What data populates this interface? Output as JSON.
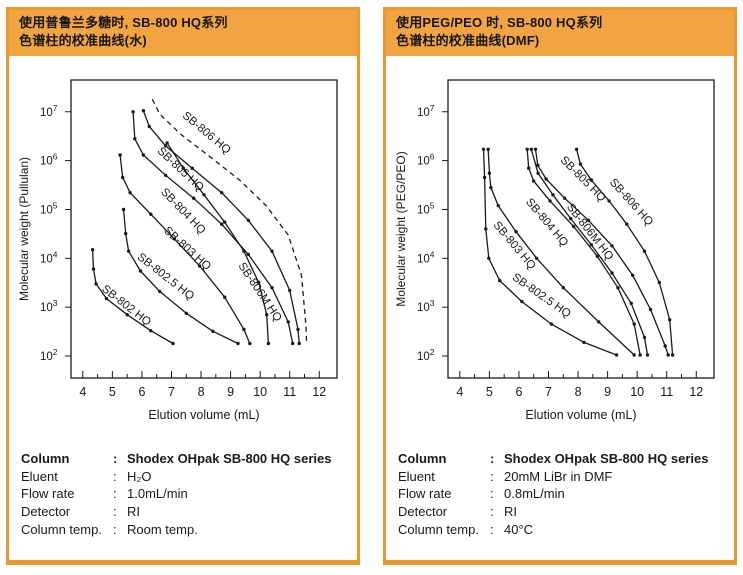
{
  "accent": {
    "panel_orange": "#F2A441",
    "panel_border": "#E9982F",
    "curve_ink": "#1a1a1a"
  },
  "separator": ":",
  "panels": [
    {
      "title_line1": "使用普鲁兰多糖时, SB-800 HQ系列",
      "title_line2": "色谱柱的校准曲线(水)",
      "info": [
        {
          "label": "Column",
          "value": "Shodex OHpak SB-800 HQ series"
        },
        {
          "label": "Eluent",
          "value": "H₂O"
        },
        {
          "label": "Flow rate",
          "value": "1.0mL/min"
        },
        {
          "label": "Detector",
          "value": "RI"
        },
        {
          "label": "Column temp.",
          "value": "Room temp."
        }
      ]
    },
    {
      "title_line1": "使用PEG/PEO 时, SB-800 HQ系列",
      "title_line2": "色谱柱的校准曲线(DMF)",
      "info": [
        {
          "label": "Column",
          "value": "Shodex OHpak SB-800 HQ series"
        },
        {
          "label": "Eluent",
          "value": "20mM LiBr in DMF"
        },
        {
          "label": "Flow rate",
          "value": "0.8mL/min"
        },
        {
          "label": "Detector",
          "value": "RI"
        },
        {
          "label": "Column temp.",
          "value": "40°C"
        }
      ]
    }
  ],
  "chart_data": [
    {
      "type": "line",
      "title": "使用普鲁兰多糖时, SB-800 HQ系列色谱柱的校准曲线(水)",
      "xlabel": "Elution volume (mL)",
      "ylabel": "Molecular weight (Pullulan)",
      "y_scale": "log",
      "grid": false,
      "legend": "labels along curves",
      "x_ticks": [
        4,
        5,
        6,
        7,
        8,
        9,
        10,
        11,
        12
      ],
      "x_minor_ticks": [
        4.5,
        5.5,
        6.5,
        7.5,
        8.5,
        9.5,
        10.5,
        11.5
      ],
      "y_tick_exponents": [
        2,
        3,
        4,
        5,
        6,
        7
      ],
      "xlim": [
        3.6,
        12.6
      ],
      "ylim_exponents": [
        1.55,
        7.65
      ],
      "series": [
        {
          "name": "SB-802 HQ",
          "style": "solid",
          "markers": true,
          "label_anchor": {
            "x": 4.62,
            "y_exp": 3.35,
            "rotation": 38
          },
          "points": [
            [
              4.33,
              15000
            ],
            [
              4.36,
              6000
            ],
            [
              4.45,
              3000
            ],
            [
              4.8,
              1500
            ],
            [
              5.5,
              700
            ],
            [
              6.3,
              330
            ],
            [
              7.05,
              180
            ]
          ]
        },
        {
          "name": "SB-802.5 HQ",
          "style": "solid",
          "markers": true,
          "label_anchor": {
            "x": 5.82,
            "y_exp": 4.0,
            "rotation": 38
          },
          "points": [
            [
              5.38,
              100000
            ],
            [
              5.45,
              32000
            ],
            [
              5.55,
              14000
            ],
            [
              5.95,
              5500
            ],
            [
              6.6,
              2100
            ],
            [
              7.5,
              750
            ],
            [
              8.4,
              320
            ],
            [
              9.25,
              180
            ]
          ]
        },
        {
          "name": "SB-803 HQ",
          "style": "solid",
          "markers": true,
          "label_anchor": {
            "x": 6.72,
            "y_exp": 4.55,
            "rotation": 42
          },
          "points": [
            [
              5.26,
              1300000
            ],
            [
              5.35,
              450000
            ],
            [
              5.6,
              220000
            ],
            [
              6.3,
              80000
            ],
            [
              7.1,
              25000
            ],
            [
              7.95,
              7000
            ],
            [
              8.8,
              1600
            ],
            [
              9.45,
              350
            ],
            [
              9.65,
              180
            ]
          ]
        },
        {
          "name": "SB-804 HQ",
          "style": "solid",
          "markers": true,
          "label_anchor": {
            "x": 6.62,
            "y_exp": 5.35,
            "rotation": 46
          },
          "points": [
            [
              5.7,
              10000000
            ],
            [
              5.76,
              2800000
            ],
            [
              6.05,
              1300000
            ],
            [
              6.8,
              500000
            ],
            [
              7.75,
              170000
            ],
            [
              8.7,
              50000
            ],
            [
              9.6,
              12000
            ],
            [
              10.4,
              2500
            ],
            [
              10.95,
              500
            ],
            [
              11.1,
              180
            ]
          ]
        },
        {
          "name": "SB-805 HQ",
          "style": "solid",
          "markers": true,
          "label_anchor": {
            "x": 6.5,
            "y_exp": 6.18,
            "rotation": 43
          },
          "points": [
            [
              6.05,
              10500000
            ],
            [
              6.25,
              5000000
            ],
            [
              6.8,
              2000000
            ],
            [
              7.7,
              700000
            ],
            [
              8.7,
              220000
            ],
            [
              9.6,
              60000
            ],
            [
              10.4,
              14000
            ],
            [
              11.0,
              2200
            ],
            [
              11.28,
              350
            ],
            [
              11.32,
              180
            ]
          ]
        },
        {
          "name": "SB-806 HQ",
          "style": "dashed",
          "markers": false,
          "label_anchor": {
            "x": 7.35,
            "y_exp": 6.9,
            "rotation": 40
          },
          "points": [
            [
              6.35,
              18000000
            ],
            [
              6.6,
              9000000
            ],
            [
              7.3,
              3500000
            ],
            [
              8.3,
              1200000
            ],
            [
              9.3,
              400000
            ],
            [
              10.2,
              120000
            ],
            [
              10.95,
              30000
            ],
            [
              11.4,
              4500
            ],
            [
              11.55,
              400
            ],
            [
              11.57,
              180
            ]
          ]
        },
        {
          "name": "SB-806M HQ",
          "style": "solid",
          "markers": true,
          "label_anchor": {
            "x": 9.25,
            "y_exp": 3.85,
            "rotation": 56
          },
          "points": [
            [
              6.85,
              2300000
            ],
            [
              7.4,
              700000
            ],
            [
              8.1,
              200000
            ],
            [
              8.8,
              55000
            ],
            [
              9.45,
              14000
            ],
            [
              9.95,
              3200
            ],
            [
              10.22,
              700
            ],
            [
              10.28,
              180
            ]
          ]
        }
      ]
    },
    {
      "type": "line",
      "title": "使用PEG/PEO 时, SB-800 HQ系列色谱柱的校准曲线(DMF)",
      "xlabel": "Elution volume (mL)",
      "ylabel": "Molecular weight (PEG/PEO)",
      "y_scale": "log",
      "grid": false,
      "legend": "labels along curves",
      "x_ticks": [
        4,
        5,
        6,
        7,
        8,
        9,
        10,
        11,
        12
      ],
      "x_minor_ticks": [
        4.5,
        5.5,
        6.5,
        7.5,
        8.5,
        9.5,
        10.5,
        11.5
      ],
      "y_tick_exponents": [
        2,
        3,
        4,
        5,
        6,
        7
      ],
      "xlim": [
        3.6,
        12.6
      ],
      "ylim_exponents": [
        1.55,
        7.65
      ],
      "series": [
        {
          "name": "SB-802.5 HQ",
          "style": "solid",
          "markers": true,
          "label_anchor": {
            "x": 5.75,
            "y_exp": 3.58,
            "rotation": 35
          },
          "points": [
            [
              4.8,
              1700000
            ],
            [
              4.84,
              450000
            ],
            [
              4.88,
              40000
            ],
            [
              4.98,
              10000
            ],
            [
              5.35,
              3500
            ],
            [
              6.1,
              1300
            ],
            [
              7.1,
              450
            ],
            [
              8.2,
              190
            ],
            [
              9.3,
              105
            ]
          ]
        },
        {
          "name": "SB-803 HQ",
          "style": "solid",
          "markers": true,
          "label_anchor": {
            "x": 5.12,
            "y_exp": 4.68,
            "rotation": 50
          },
          "points": [
            [
              4.96,
              1700000
            ],
            [
              5.0,
              550000
            ],
            [
              5.05,
              280000
            ],
            [
              5.3,
              120000
            ],
            [
              5.9,
              35000
            ],
            [
              6.6,
              10000
            ],
            [
              7.5,
              2500
            ],
            [
              8.7,
              500
            ],
            [
              9.9,
              105
            ]
          ]
        },
        {
          "name": "SB-804 HQ",
          "style": "solid",
          "markers": true,
          "label_anchor": {
            "x": 6.22,
            "y_exp": 5.15,
            "rotation": 50
          },
          "points": [
            [
              6.28,
              1700000
            ],
            [
              6.33,
              700000
            ],
            [
              6.5,
              380000
            ],
            [
              7.05,
              150000
            ],
            [
              7.85,
              45000
            ],
            [
              8.65,
              11000
            ],
            [
              9.35,
              2500
            ],
            [
              9.9,
              450
            ],
            [
              10.1,
              105
            ]
          ]
        },
        {
          "name": "SB-806M HQ",
          "style": "solid",
          "markers": true,
          "label_anchor": {
            "x": 7.6,
            "y_exp": 5.05,
            "rotation": 52
          },
          "points": [
            [
              6.42,
              1700000
            ],
            [
              6.65,
              550000
            ],
            [
              7.15,
              200000
            ],
            [
              7.75,
              65000
            ],
            [
              8.45,
              19000
            ],
            [
              9.15,
              5000
            ],
            [
              9.8,
              1200
            ],
            [
              10.25,
              240
            ],
            [
              10.35,
              105
            ]
          ]
        },
        {
          "name": "SB-805 HQ",
          "style": "solid",
          "markers": true,
          "label_anchor": {
            "x": 7.38,
            "y_exp": 6.0,
            "rotation": 45
          },
          "points": [
            [
              6.56,
              1700000
            ],
            [
              6.64,
              800000
            ],
            [
              6.92,
              420000
            ],
            [
              7.55,
              170000
            ],
            [
              8.35,
              60000
            ],
            [
              9.15,
              18000
            ],
            [
              9.85,
              4500
            ],
            [
              10.45,
              900
            ],
            [
              10.95,
              160
            ],
            [
              11.05,
              105
            ]
          ]
        },
        {
          "name": "SB-806 HQ",
          "style": "solid",
          "markers": true,
          "label_anchor": {
            "x": 9.05,
            "y_exp": 5.55,
            "rotation": 48
          },
          "points": [
            [
              7.95,
              1700000
            ],
            [
              8.08,
              850000
            ],
            [
              8.45,
              400000
            ],
            [
              9.05,
              150000
            ],
            [
              9.65,
              50000
            ],
            [
              10.25,
              14000
            ],
            [
              10.75,
              3200
            ],
            [
              11.1,
              550
            ],
            [
              11.2,
              105
            ]
          ]
        }
      ]
    }
  ]
}
